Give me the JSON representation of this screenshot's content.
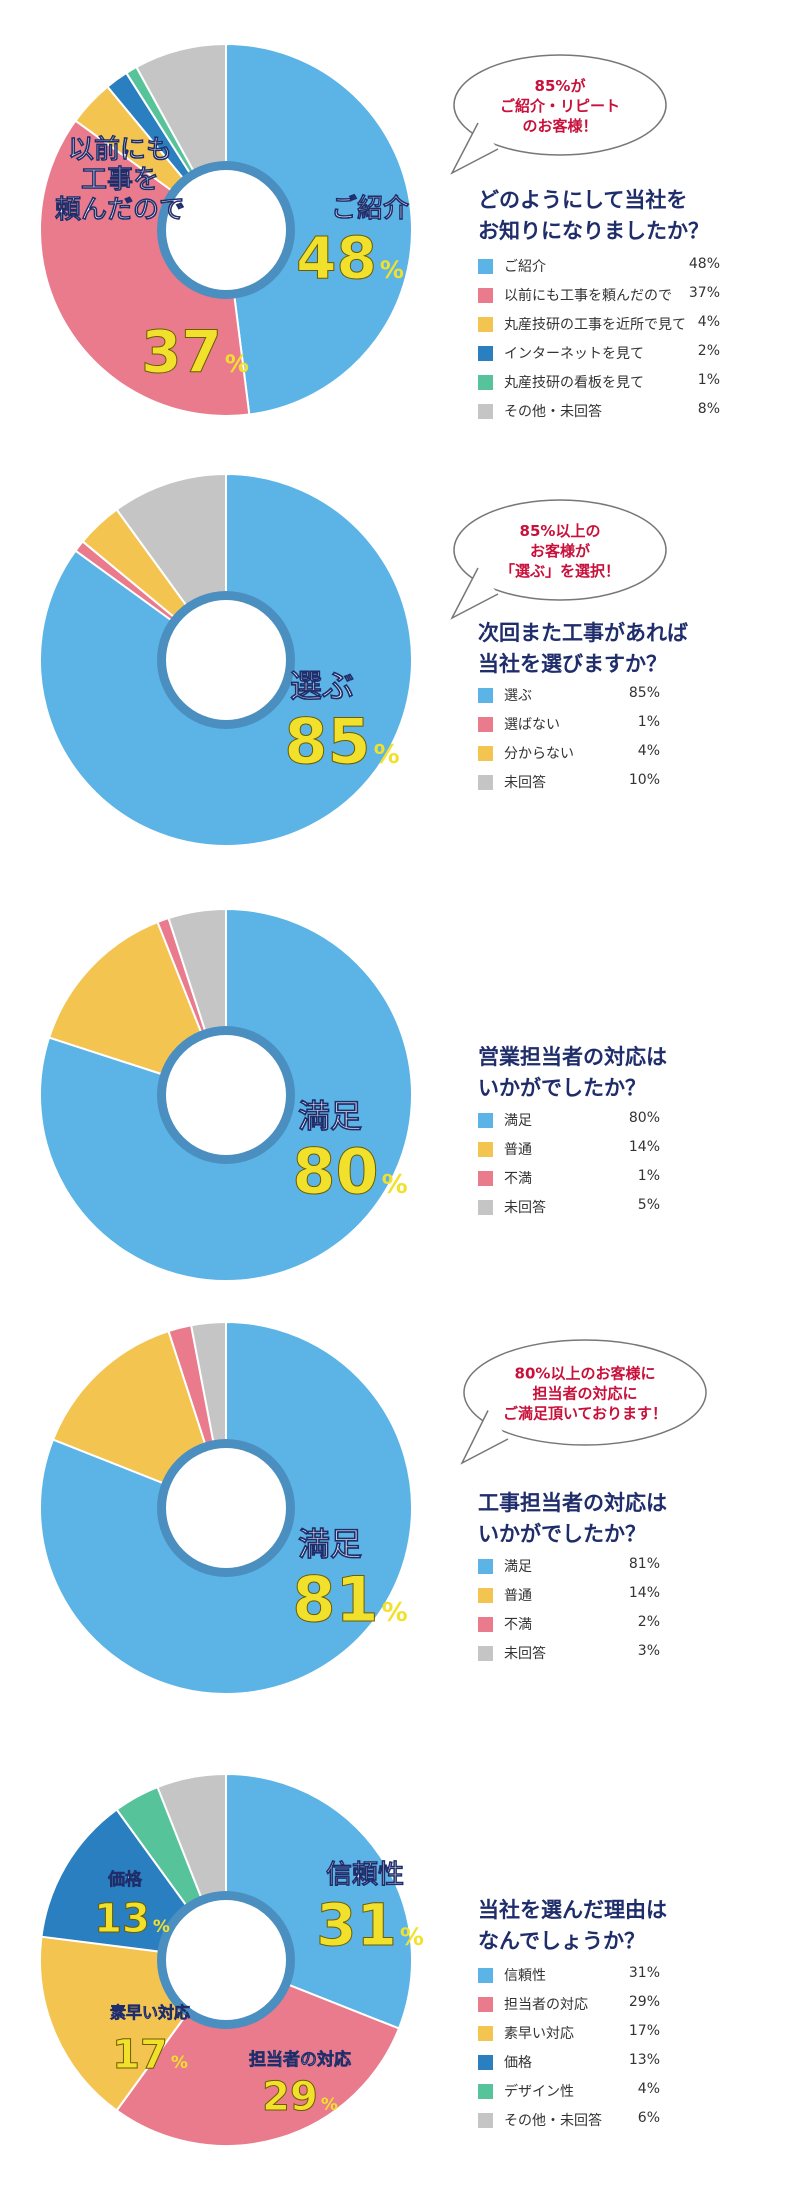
{
  "colors": {
    "blue": "#5bb4e5",
    "pink": "#e97b8c",
    "yellow": "#f4c451",
    "darkblue": "#2a7fc1",
    "green": "#56c39a",
    "gray": "#c5c5c5",
    "value_yellow": "#f2e12c",
    "title_navy": "#1f2d6b",
    "bubble_red": "#c8103a"
  },
  "chart_data": [
    {
      "type": "pie",
      "title": "どのようにして当社を\nお知りになりましたか？",
      "bubble": "85%が\nご紹介・リピート\nのお客様！",
      "slices": [
        {
          "label": "ご紹介",
          "value": 48,
          "value_text": "48%",
          "color": "#5bb4e5"
        },
        {
          "label": "以前にも工事を頼んだので",
          "value": 37,
          "value_text": "37%",
          "color": "#e97b8c"
        },
        {
          "label": "丸産技研の工事を近所で見て",
          "value": 4,
          "value_text": "4%",
          "color": "#f4c451"
        },
        {
          "label": "インターネットを見て",
          "value": 2,
          "value_text": "2%",
          "color": "#2a7fc1"
        },
        {
          "label": "丸産技研の看板を見て",
          "value": 1,
          "value_text": "1%",
          "color": "#56c39a"
        },
        {
          "label": "その他・未回答",
          "value": 8,
          "value_text": "8%",
          "color": "#c5c5c5"
        }
      ],
      "callouts": [
        {
          "text": "ご紹介",
          "number": "48",
          "unit": "%"
        },
        {
          "text": "以前にも\n工事を\n頼んだので",
          "number": "37",
          "unit": "%"
        }
      ]
    },
    {
      "type": "pie",
      "title": "次回また工事があれば\n当社を選びますか？",
      "bubble": "85%以上の\nお客様が\n「選ぶ」を選択！",
      "slices": [
        {
          "label": "選ぶ",
          "value": 85,
          "value_text": "85%",
          "color": "#5bb4e5"
        },
        {
          "label": "選ばない",
          "value": 1,
          "value_text": "1%",
          "color": "#e97b8c"
        },
        {
          "label": "分からない",
          "value": 4,
          "value_text": "4%",
          "color": "#f4c451"
        },
        {
          "label": "未回答",
          "value": 10,
          "value_text": "10%",
          "color": "#c5c5c5"
        }
      ],
      "callouts": [
        {
          "text": "選ぶ",
          "number": "85",
          "unit": "%"
        }
      ]
    },
    {
      "type": "pie",
      "title": "営業担当者の対応は\nいかがでしたか？",
      "bubble": "",
      "slices": [
        {
          "label": "満足",
          "value": 80,
          "value_text": "80%",
          "color": "#5bb4e5"
        },
        {
          "label": "普通",
          "value": 14,
          "value_text": "14%",
          "color": "#f4c451"
        },
        {
          "label": "不満",
          "value": 1,
          "value_text": "1%",
          "color": "#e97b8c"
        },
        {
          "label": "未回答",
          "value": 5,
          "value_text": "5%",
          "color": "#c5c5c5"
        }
      ],
      "callouts": [
        {
          "text": "満足",
          "number": "80",
          "unit": "%"
        }
      ]
    },
    {
      "type": "pie",
      "title": "工事担当者の対応は\nいかがでしたか？",
      "bubble": "80%以上のお客様に\n担当者の対応に\nご満足頂いております！",
      "slices": [
        {
          "label": "満足",
          "value": 81,
          "value_text": "81%",
          "color": "#5bb4e5"
        },
        {
          "label": "普通",
          "value": 14,
          "value_text": "14%",
          "color": "#f4c451"
        },
        {
          "label": "不満",
          "value": 2,
          "value_text": "2%",
          "color": "#e97b8c"
        },
        {
          "label": "未回答",
          "value": 3,
          "value_text": "3%",
          "color": "#c5c5c5"
        }
      ],
      "callouts": [
        {
          "text": "満足",
          "number": "81",
          "unit": "%"
        }
      ]
    },
    {
      "type": "pie",
      "title": "当社を選んだ理由は\nなんでしょうか？",
      "bubble": "",
      "slices": [
        {
          "label": "信頼性",
          "value": 31,
          "value_text": "31%",
          "color": "#5bb4e5"
        },
        {
          "label": "担当者の対応",
          "value": 29,
          "value_text": "29%",
          "color": "#e97b8c"
        },
        {
          "label": "素早い対応",
          "value": 17,
          "value_text": "17%",
          "color": "#f4c451"
        },
        {
          "label": "価格",
          "value": 13,
          "value_text": "13%",
          "color": "#2a7fc1"
        },
        {
          "label": "デザイン性",
          "value": 4,
          "value_text": "4%",
          "color": "#56c39a"
        },
        {
          "label": "その他・未回答",
          "value": 6,
          "value_text": "6%",
          "color": "#c5c5c5"
        }
      ],
      "callouts": [
        {
          "text": "信頼性",
          "number": "31",
          "unit": "%"
        },
        {
          "text": "担当者の対応",
          "number": "29",
          "unit": "%"
        },
        {
          "text": "素早い対応",
          "number": "17",
          "unit": "%"
        },
        {
          "text": "価格",
          "number": "13",
          "unit": "%"
        }
      ]
    }
  ]
}
